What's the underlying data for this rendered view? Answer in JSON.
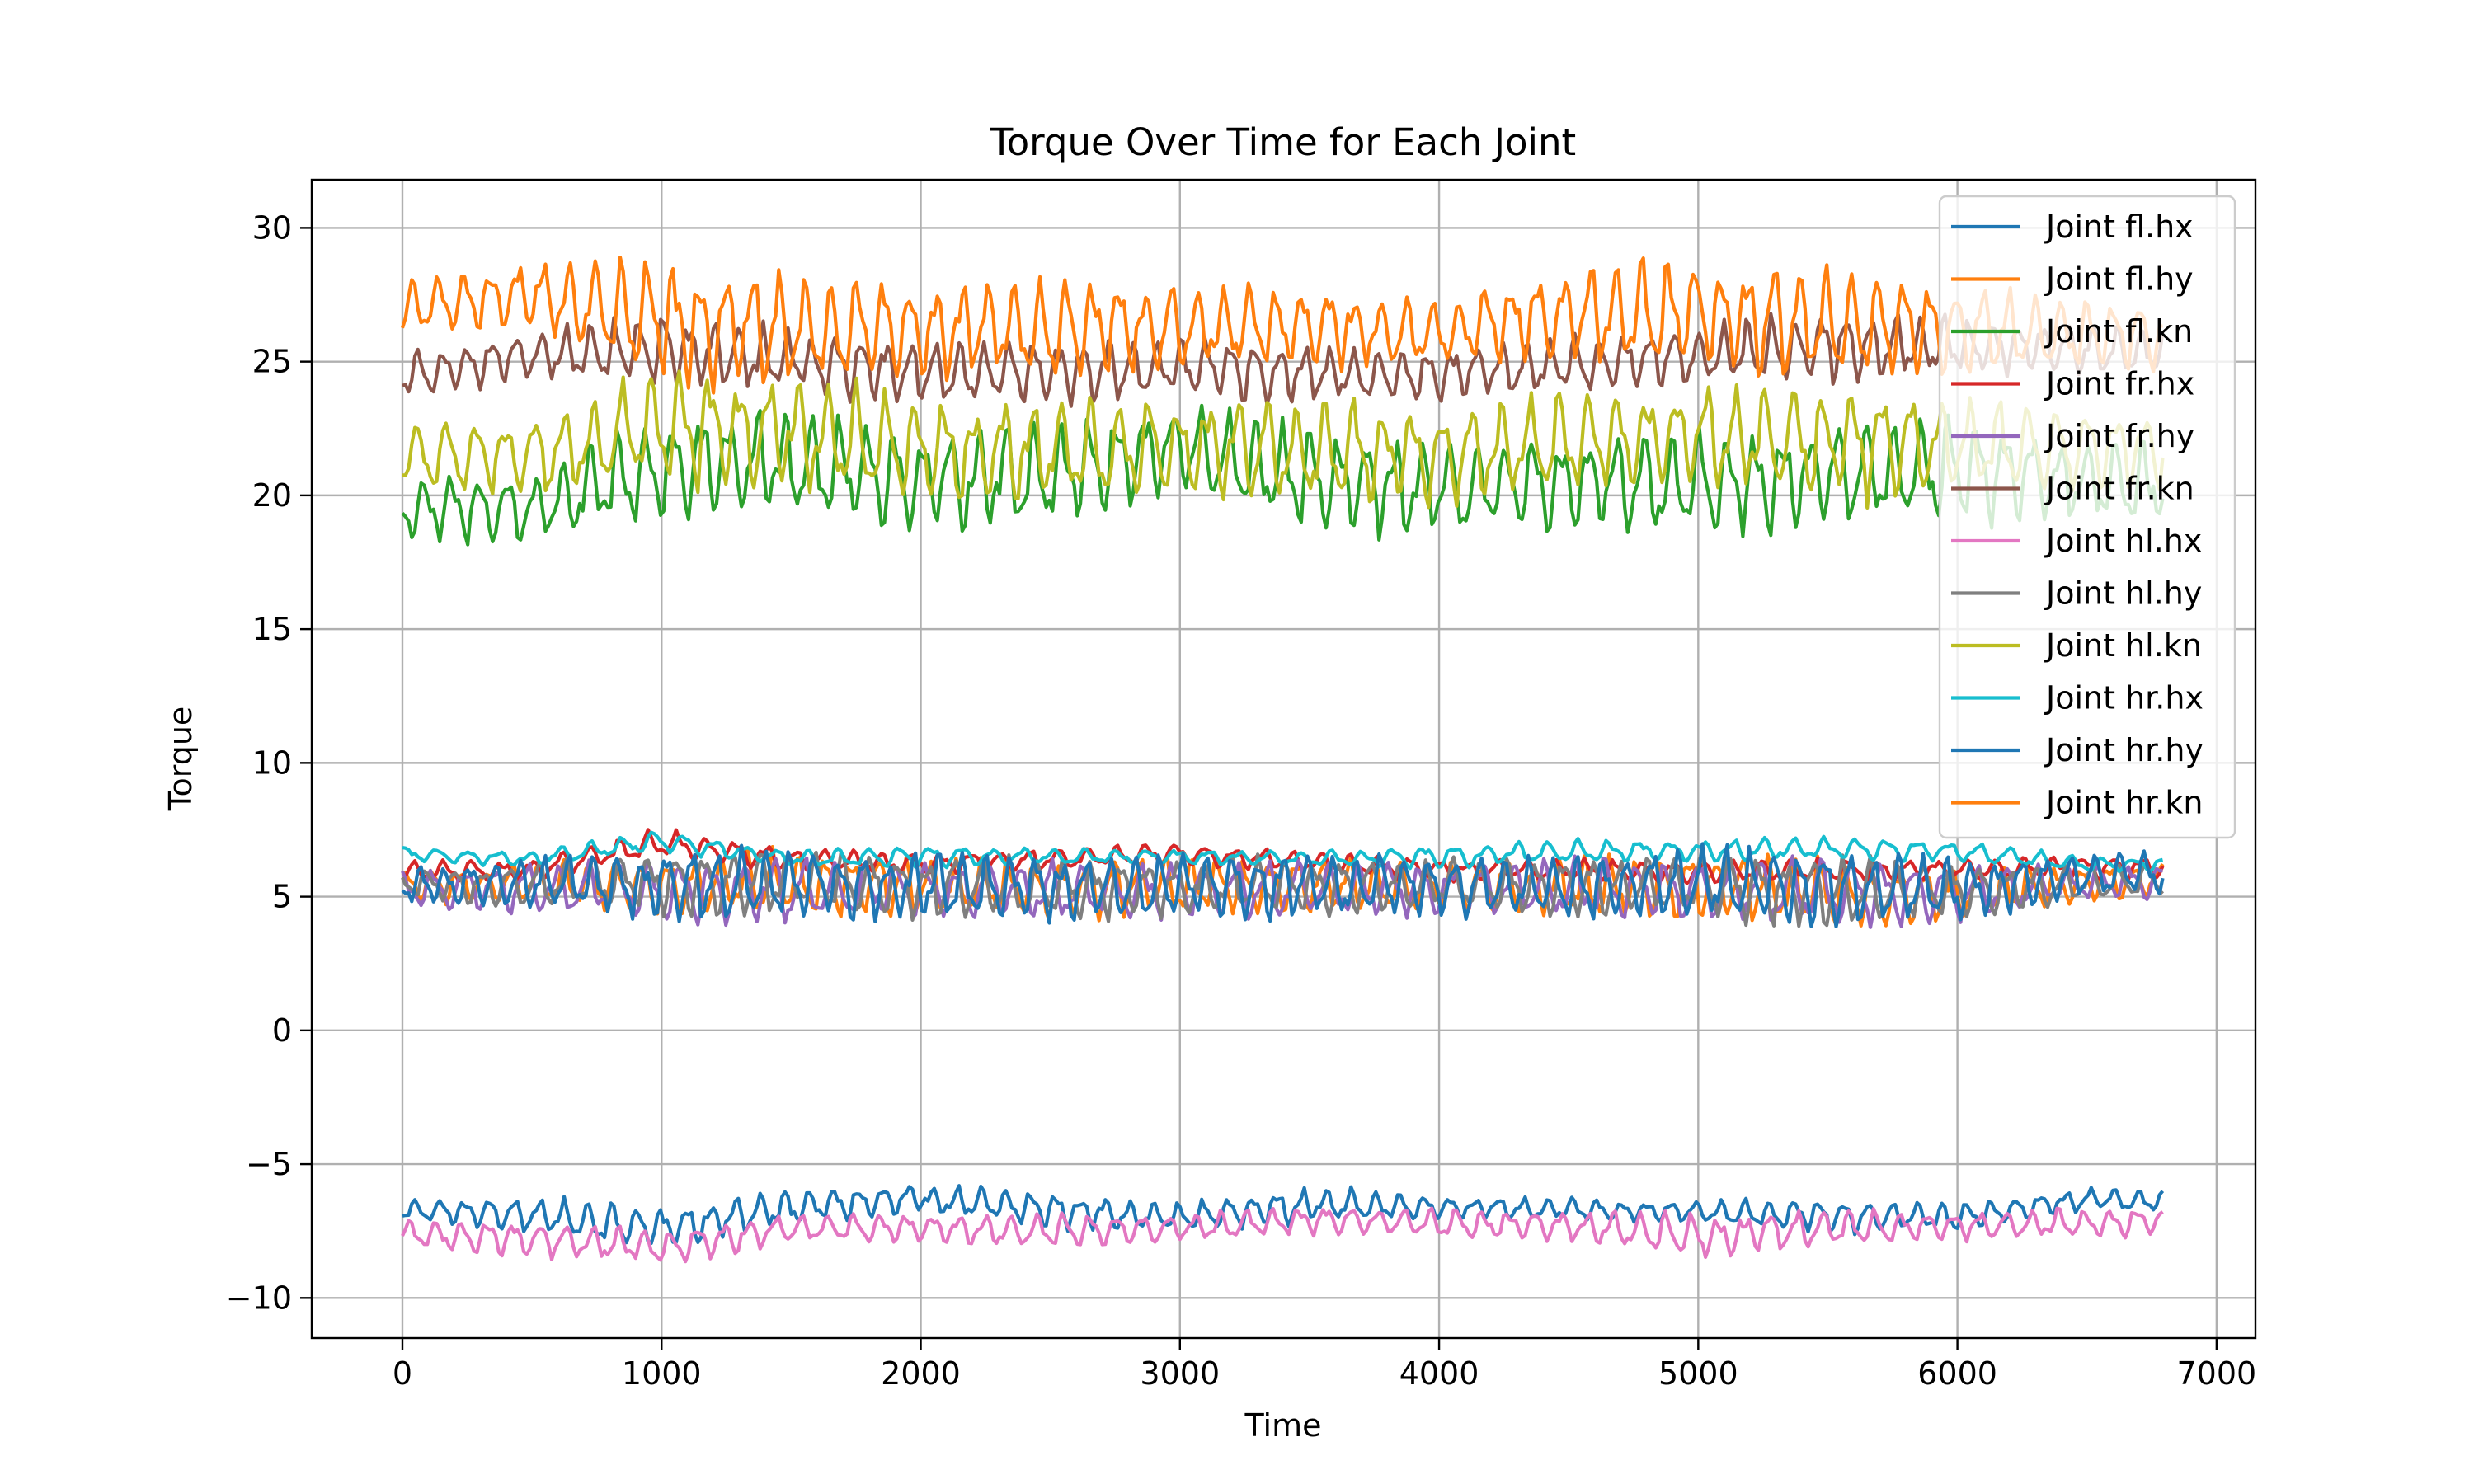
{
  "chart_data": {
    "type": "line",
    "title": "Torque Over Time for Each Joint",
    "xlabel": "Time",
    "ylabel": "Torque",
    "xlim": [
      -350,
      7150
    ],
    "ylim": [
      -11.5,
      31.8
    ],
    "x_ticks": [
      0,
      1000,
      2000,
      3000,
      4000,
      5000,
      6000,
      7000
    ],
    "x_tick_labels": [
      "0",
      "1000",
      "2000",
      "3000",
      "4000",
      "5000",
      "6000",
      "7000"
    ],
    "y_ticks": [
      -10,
      -5,
      0,
      5,
      10,
      15,
      20,
      25,
      30
    ],
    "y_tick_labels": [
      "−10",
      "−5",
      "0",
      "5",
      "10",
      "15",
      "20",
      "25",
      "30"
    ],
    "grid": true,
    "legend_position": "upper right",
    "x_range": [
      0,
      6800
    ],
    "series": [
      {
        "name": "Joint fl.hx",
        "color": "#1f77b4",
        "x": [
          0,
          500,
          1000,
          1500,
          2000,
          2500,
          3000,
          3500,
          4000,
          4500,
          5000,
          5500,
          6000,
          6500,
          6800
        ],
        "mean": [
          -6.7,
          -6.9,
          -7.4,
          -6.6,
          -6.3,
          -6.7,
          -7.0,
          -6.5,
          -6.6,
          -6.7,
          -6.8,
          -6.9,
          -7.0,
          -6.3,
          -6.4
        ],
        "amplitude": [
          0.3,
          0.5,
          0.6,
          0.5,
          0.4,
          0.5,
          0.4,
          0.5,
          0.3,
          0.3,
          0.3,
          0.5,
          0.4,
          0.3,
          0.3
        ]
      },
      {
        "name": "Joint fl.hy",
        "color": "#ff7f0e",
        "x": [
          0,
          500,
          1000,
          1500,
          2000,
          2500,
          3000,
          3500,
          4000,
          4500,
          5000,
          5500,
          6000,
          6500,
          6800
        ],
        "mean": [
          5.4,
          5.5,
          5.4,
          5.5,
          5.4,
          5.3,
          5.4,
          5.4,
          5.4,
          5.3,
          5.4,
          5.2,
          5.0,
          5.5,
          5.6
        ],
        "amplitude": [
          0.4,
          0.6,
          0.8,
          0.9,
          0.8,
          0.8,
          0.8,
          0.8,
          0.7,
          0.8,
          0.9,
          1.0,
          0.8,
          0.5,
          0.5
        ]
      },
      {
        "name": "Joint fl.kn",
        "color": "#2ca02c",
        "x": [
          0,
          500,
          1000,
          1500,
          2000,
          2500,
          3000,
          3500,
          4000,
          4500,
          5000,
          5500,
          6000,
          6500,
          6800
        ],
        "mean": [
          19.5,
          19.5,
          21.0,
          21.3,
          20.5,
          20.8,
          21.8,
          20.5,
          20.2,
          20.4,
          20.4,
          20.8,
          21.0,
          20.5,
          20.5
        ],
        "amplitude": [
          0.9,
          1.0,
          1.5,
          1.6,
          1.3,
          1.5,
          1.2,
          1.5,
          1.3,
          1.3,
          1.4,
          1.5,
          1.4,
          1.2,
          1.2
        ]
      },
      {
        "name": "Joint fr.hx",
        "color": "#d62728",
        "x": [
          0,
          500,
          1000,
          1500,
          2000,
          2500,
          3000,
          3500,
          4000,
          4500,
          5000,
          5500,
          6000,
          6500,
          6800
        ],
        "mean": [
          5.9,
          6.0,
          7.0,
          6.4,
          6.2,
          6.4,
          6.6,
          6.3,
          6.0,
          6.0,
          5.9,
          6.0,
          6.0,
          6.1,
          6.1
        ],
        "amplitude": [
          0.3,
          0.3,
          0.4,
          0.3,
          0.3,
          0.3,
          0.3,
          0.3,
          0.3,
          0.3,
          0.3,
          0.3,
          0.3,
          0.3,
          0.3
        ]
      },
      {
        "name": "Joint fr.hy",
        "color": "#9467bd",
        "x": [
          0,
          500,
          1000,
          1500,
          2000,
          2500,
          3000,
          3500,
          4000,
          4500,
          5000,
          5500,
          6000,
          6500,
          6800
        ],
        "mean": [
          5.3,
          5.3,
          5.2,
          5.2,
          5.3,
          5.2,
          5.3,
          5.3,
          5.3,
          5.3,
          5.3,
          5.2,
          5.1,
          5.5,
          5.6
        ],
        "amplitude": [
          0.5,
          0.7,
          0.9,
          0.9,
          0.8,
          0.8,
          0.8,
          0.8,
          0.7,
          0.8,
          0.9,
          1.0,
          0.8,
          0.5,
          0.5
        ]
      },
      {
        "name": "Joint fr.kn",
        "color": "#8c564b",
        "x": [
          0,
          500,
          1000,
          1500,
          2000,
          2500,
          3000,
          3500,
          4000,
          4500,
          5000,
          5500,
          6000,
          6500,
          6800
        ],
        "mean": [
          24.5,
          25.2,
          25.5,
          25.0,
          24.6,
          24.6,
          24.8,
          24.5,
          24.5,
          24.9,
          25.2,
          25.6,
          25.6,
          25.4,
          25.4
        ],
        "amplitude": [
          0.6,
          0.7,
          1.0,
          0.9,
          0.9,
          0.9,
          0.8,
          0.8,
          0.7,
          0.8,
          0.8,
          1.0,
          0.8,
          0.7,
          0.7
        ]
      },
      {
        "name": "Joint hl.hx",
        "color": "#e377c2",
        "x": [
          0,
          500,
          1000,
          1500,
          2000,
          2500,
          3000,
          3500,
          4000,
          4500,
          5000,
          5500,
          6000,
          6500,
          6800
        ],
        "mean": [
          -7.6,
          -7.8,
          -8.1,
          -7.4,
          -7.4,
          -7.5,
          -7.4,
          -7.1,
          -7.2,
          -7.3,
          -7.7,
          -7.4,
          -7.3,
          -7.2,
          -7.1
        ],
        "amplitude": [
          0.4,
          0.5,
          0.5,
          0.4,
          0.4,
          0.5,
          0.4,
          0.4,
          0.4,
          0.4,
          0.6,
          0.5,
          0.4,
          0.4,
          0.4
        ]
      },
      {
        "name": "Joint hl.hy",
        "color": "#7f7f7f",
        "x": [
          0,
          500,
          1000,
          1500,
          2000,
          2500,
          3000,
          3500,
          4000,
          4500,
          5000,
          5500,
          6000,
          6500,
          6800
        ],
        "mean": [
          5.5,
          5.4,
          5.6,
          5.5,
          5.4,
          5.3,
          5.4,
          5.4,
          5.4,
          5.4,
          5.4,
          5.2,
          5.2,
          5.5,
          5.6
        ],
        "amplitude": [
          0.4,
          0.6,
          0.9,
          0.9,
          0.8,
          0.9,
          0.8,
          0.8,
          0.7,
          0.8,
          0.9,
          1.0,
          0.8,
          0.5,
          0.5
        ]
      },
      {
        "name": "Joint hl.kn",
        "color": "#bcbd22",
        "x": [
          0,
          500,
          1000,
          1500,
          2000,
          2500,
          3000,
          3500,
          4000,
          4500,
          5000,
          5500,
          6000,
          6500,
          6800
        ],
        "mean": [
          21.5,
          21.5,
          22.5,
          22.3,
          21.7,
          21.6,
          21.8,
          21.6,
          21.5,
          22.0,
          22.2,
          22.0,
          21.8,
          21.8,
          21.8
        ],
        "amplitude": [
          0.9,
          1.1,
          1.6,
          1.6,
          1.4,
          1.5,
          1.3,
          1.5,
          1.3,
          1.4,
          1.4,
          1.6,
          1.4,
          1.2,
          1.2
        ]
      },
      {
        "name": "Joint hr.hx",
        "color": "#17becf",
        "x": [
          0,
          500,
          1000,
          1500,
          2000,
          2500,
          3000,
          3500,
          4000,
          4500,
          5000,
          5500,
          6000,
          6500,
          6800
        ],
        "mean": [
          6.6,
          6.4,
          7.1,
          6.4,
          6.5,
          6.5,
          6.5,
          6.4,
          6.5,
          6.7,
          6.7,
          6.8,
          6.7,
          6.2,
          6.2
        ],
        "amplitude": [
          0.2,
          0.2,
          0.3,
          0.2,
          0.3,
          0.2,
          0.2,
          0.2,
          0.3,
          0.3,
          0.3,
          0.3,
          0.3,
          0.2,
          0.2
        ]
      },
      {
        "name": "Joint hr.hy",
        "color": "#1f77b4",
        "x": [
          0,
          500,
          1000,
          1500,
          2000,
          2500,
          3000,
          3500,
          4000,
          4500,
          5000,
          5500,
          6000,
          6500,
          6800
        ],
        "mean": [
          5.4,
          5.5,
          5.4,
          5.5,
          5.4,
          5.3,
          5.4,
          5.4,
          5.4,
          5.3,
          5.5,
          5.3,
          5.2,
          5.8,
          5.9
        ],
        "amplitude": [
          0.5,
          0.7,
          1.0,
          1.0,
          0.9,
          0.9,
          0.9,
          0.9,
          0.8,
          0.9,
          1.0,
          1.1,
          0.9,
          0.6,
          0.6
        ]
      },
      {
        "name": "Joint hr.kn",
        "color": "#ff7f0e",
        "x": [
          0,
          500,
          1000,
          1500,
          2000,
          2500,
          3000,
          3500,
          4000,
          4500,
          5000,
          5500,
          6000,
          6500,
          6800
        ],
        "mean": [
          27.0,
          27.5,
          26.5,
          26.2,
          26.2,
          26.2,
          26.3,
          26.3,
          26.0,
          26.8,
          26.8,
          26.4,
          26.2,
          26.0,
          26.0
        ],
        "amplitude": [
          0.8,
          1.0,
          1.6,
          1.6,
          1.3,
          1.4,
          1.2,
          1.2,
          0.9,
          1.4,
          1.6,
          1.5,
          1.2,
          1.0,
          1.0
        ]
      }
    ]
  }
}
